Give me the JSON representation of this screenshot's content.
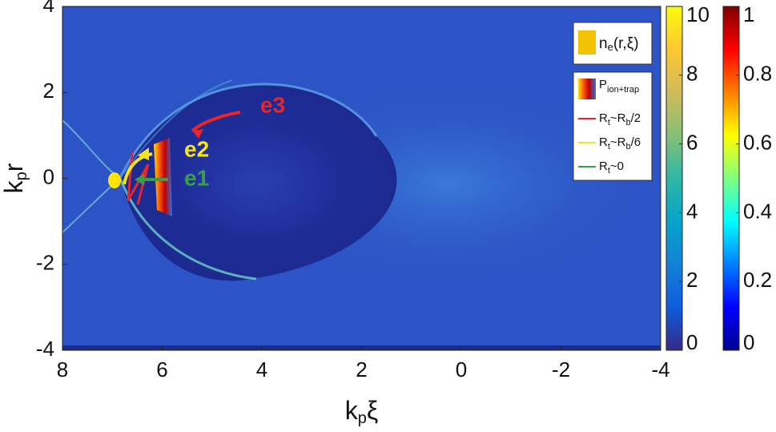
{
  "chart_data": {
    "type": "heatmap",
    "xlim": [
      8,
      -4
    ],
    "xticks": [
      8,
      6,
      4,
      2,
      0,
      -2,
      -4
    ],
    "ylim": [
      -4,
      4
    ],
    "yticks": [
      -4,
      -2,
      0,
      2,
      4
    ],
    "x_label": {
      "base": "k",
      "sub": "p",
      "after": "ξ"
    },
    "y_label": {
      "base": "k",
      "sub": "p",
      "after": "r"
    },
    "colorbars": [
      {
        "lim": [
          0,
          10
        ],
        "ticks": [
          0,
          2,
          4,
          6,
          8,
          10
        ],
        "colors": [
          "#352a87",
          "#0f5cdd",
          "#1481d6",
          "#06a4ca",
          "#2eb7a4",
          "#87bf77",
          "#d1bb59",
          "#fec832",
          "#f9fb0e"
        ]
      },
      {
        "lim": [
          0,
          1
        ],
        "ticks": [
          0,
          0.2,
          0.4,
          0.6,
          0.8,
          1
        ],
        "colors": [
          "#00008f",
          "#0000ff",
          "#0080ff",
          "#00ffff",
          "#80ff80",
          "#ffff00",
          "#ff8000",
          "#ff0000",
          "#800000"
        ]
      }
    ],
    "legend": {
      "density": {
        "base": "n",
        "sub": "e",
        "after": "(r,ξ)"
      },
      "probability": {
        "base": "P",
        "sub": "ion+trap"
      },
      "entries": [
        {
          "base": "R",
          "sub": "t",
          "after": "~R",
          "sub2": "b",
          "after2": "/2",
          "color": "#e8262a"
        },
        {
          "base": "R",
          "sub": "t",
          "after": "~R",
          "sub2": "b",
          "after2": "/6",
          "color": "#f4e41c"
        },
        {
          "base": "R",
          "sub": "t",
          "after": "~0",
          "color": "#3aa047"
        }
      ]
    },
    "annotations": [
      {
        "text": "e3",
        "color": "#e8262a"
      },
      {
        "text": "e2",
        "color": "#f4e41c"
      },
      {
        "text": "e1",
        "color": "#3aa047"
      }
    ]
  }
}
